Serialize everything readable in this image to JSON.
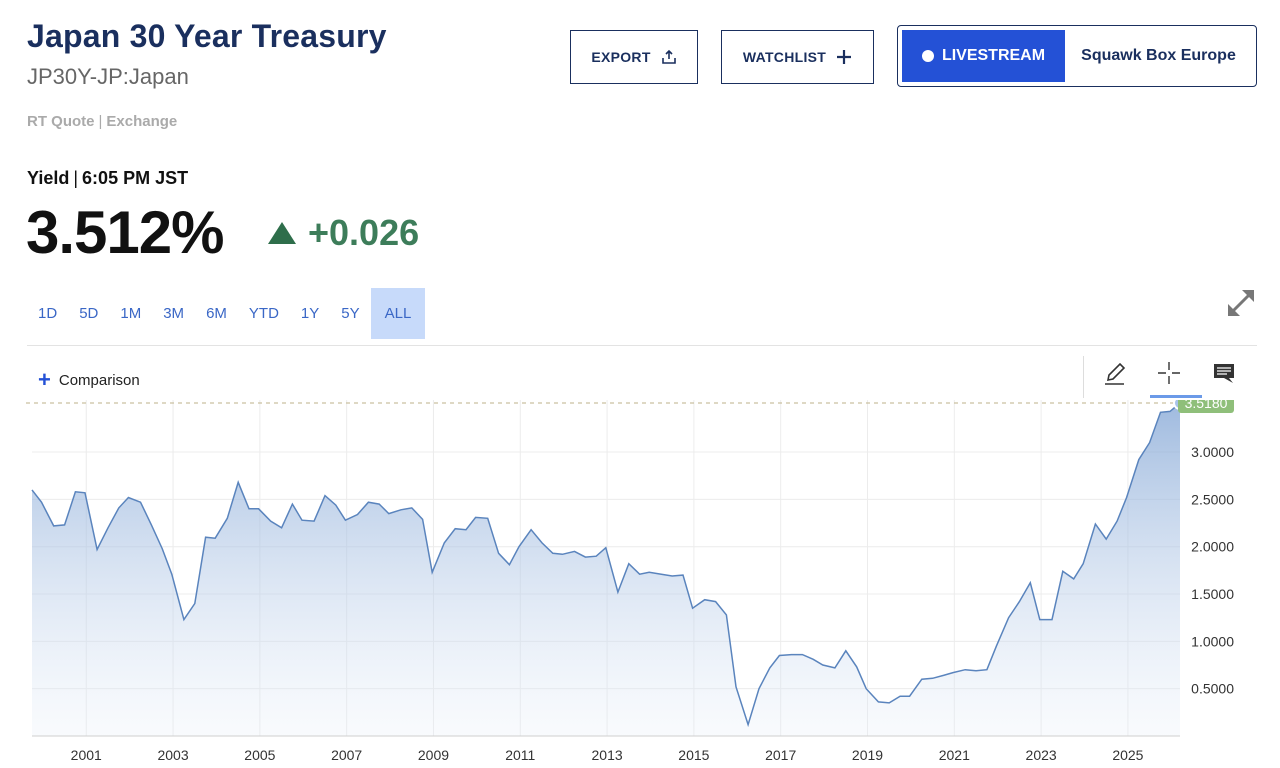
{
  "header": {
    "title": "Japan 30 Year Treasury",
    "subtitle": "JP30Y-JP:Japan",
    "quote_type": "RT Quote",
    "quote_sep": "|",
    "exchange": "Exchange"
  },
  "buttons": {
    "export": "EXPORT",
    "watchlist": "WATCHLIST",
    "livestream": "LIVESTREAM",
    "show": "Squawk Box Europe"
  },
  "quote": {
    "label": "Yield",
    "sep": "|",
    "time": "6:05 PM JST",
    "price": "3.512%",
    "change": "+0.026",
    "change_color": "#3d7d5a"
  },
  "ranges": [
    "1D",
    "5D",
    "1M",
    "3M",
    "6M",
    "YTD",
    "1Y",
    "5Y",
    "ALL"
  ],
  "active_range": "ALL",
  "toolbar": {
    "comparison": "Comparison",
    "icons": [
      "pencil-icon",
      "crosshair-icon",
      "comment-icon",
      "expand-icon"
    ]
  },
  "chart_data": {
    "type": "area",
    "title": "",
    "xlabel": "",
    "ylabel": "",
    "x_ticks": [
      "2001",
      "2003",
      "2005",
      "2007",
      "2009",
      "2011",
      "2013",
      "2015",
      "2017",
      "2019",
      "2021",
      "2023",
      "2025"
    ],
    "y_ticks": [
      "0.5000",
      "1.0000",
      "1.5000",
      "2.0000",
      "2.5000",
      "3.0000"
    ],
    "ylim": [
      0.0,
      3.55
    ],
    "xlim": [
      1999.75,
      2026.2
    ],
    "last_value_label": "3.5180",
    "last_value_color": "#8fbf7a",
    "line_color": "#5a84bd",
    "grid": true,
    "series": [
      {
        "x": [
          1999.75,
          1999.97,
          2000.25,
          2000.5,
          2000.75,
          2000.97,
          2001.25,
          2001.5,
          2001.75,
          2001.97,
          2002.25,
          2002.5,
          2002.75,
          2002.97,
          2003.25,
          2003.5,
          2003.75,
          2003.97,
          2004.25,
          2004.5,
          2004.75,
          2004.97,
          2005.25,
          2005.5,
          2005.75,
          2005.97,
          2006.25,
          2006.5,
          2006.75,
          2006.97,
          2007.25,
          2007.5,
          2007.75,
          2007.97,
          2008.25,
          2008.5,
          2008.75,
          2008.97,
          2009.25,
          2009.5,
          2009.75,
          2009.97,
          2010.25,
          2010.5,
          2010.75,
          2010.97,
          2011.25,
          2011.5,
          2011.75,
          2011.97,
          2012.25,
          2012.5,
          2012.75,
          2012.97,
          2013.25,
          2013.5,
          2013.75,
          2013.97,
          2014.25,
          2014.5,
          2014.75,
          2014.97,
          2015.25,
          2015.5,
          2015.75,
          2015.97,
          2016.25,
          2016.5,
          2016.75,
          2016.97,
          2017.25,
          2017.5,
          2017.75,
          2017.97,
          2018.25,
          2018.5,
          2018.75,
          2018.97,
          2019.25,
          2019.5,
          2019.75,
          2019.97,
          2020.25,
          2020.5,
          2020.75,
          2020.97,
          2021.25,
          2021.5,
          2021.75,
          2021.97,
          2022.25,
          2022.5,
          2022.75,
          2022.97,
          2023.25,
          2023.5,
          2023.75,
          2023.97,
          2024.25,
          2024.5,
          2024.75,
          2024.97,
          2025.25,
          2025.5,
          2025.75,
          2025.97,
          2026.2
        ],
        "values": [
          2.6,
          2.47,
          2.22,
          2.23,
          2.58,
          2.57,
          1.97,
          2.2,
          2.41,
          2.52,
          2.47,
          2.23,
          1.98,
          1.71,
          1.23,
          1.4,
          2.1,
          2.09,
          2.3,
          2.68,
          2.4,
          2.4,
          2.27,
          2.2,
          2.45,
          2.28,
          2.27,
          2.54,
          2.44,
          2.28,
          2.34,
          2.47,
          2.45,
          2.35,
          2.39,
          2.41,
          2.29,
          1.73,
          2.04,
          2.19,
          2.18,
          2.31,
          2.3,
          1.93,
          1.81,
          2.0,
          2.18,
          2.04,
          1.93,
          1.92,
          1.95,
          1.89,
          1.9,
          1.99,
          1.52,
          1.82,
          1.71,
          1.73,
          1.71,
          1.69,
          1.7,
          1.35,
          1.44,
          1.42,
          1.28,
          0.52,
          0.12,
          0.5,
          0.72,
          0.85,
          0.86,
          0.86,
          0.81,
          0.75,
          0.72,
          0.9,
          0.73,
          0.5,
          0.36,
          0.35,
          0.42,
          0.42,
          0.6,
          0.61,
          0.64,
          0.67,
          0.7,
          0.69,
          0.7,
          0.95,
          1.25,
          1.42,
          1.62,
          1.23,
          1.23,
          1.74,
          1.66,
          1.82,
          2.24,
          2.08,
          2.27,
          2.52,
          2.92,
          3.1,
          3.42,
          3.43,
          3.518
        ]
      }
    ]
  }
}
